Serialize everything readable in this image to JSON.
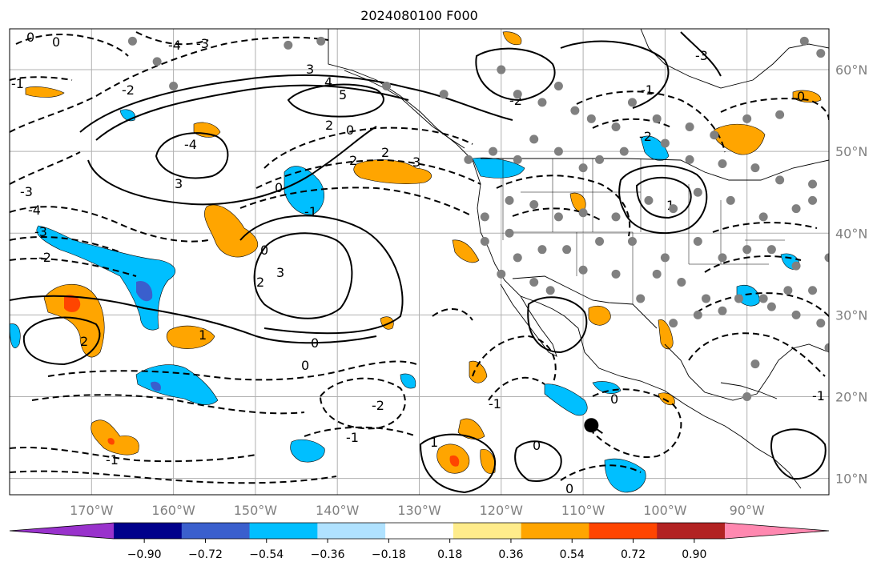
{
  "title": "2024080100 F000",
  "map": {
    "projection": "PlateCarree",
    "lon_range": [
      -180,
      -80
    ],
    "lat_range": [
      8,
      65
    ],
    "lon_ticks": [
      {
        "value": -170,
        "label": "170°W"
      },
      {
        "value": -160,
        "label": "160°W"
      },
      {
        "value": -150,
        "label": "150°W"
      },
      {
        "value": -140,
        "label": "140°W"
      },
      {
        "value": -130,
        "label": "130°W"
      },
      {
        "value": -120,
        "label": "120°W"
      },
      {
        "value": -110,
        "label": "110°W"
      },
      {
        "value": -100,
        "label": "100°W"
      },
      {
        "value": -90,
        "label": "90°W"
      }
    ],
    "lat_ticks": [
      {
        "value": 10,
        "label": "10°N"
      },
      {
        "value": 20,
        "label": "20°N"
      },
      {
        "value": 30,
        "label": "30°N"
      },
      {
        "value": 40,
        "label": "40°N"
      },
      {
        "value": 50,
        "label": "50°N"
      },
      {
        "value": 60,
        "label": "60°N"
      }
    ],
    "grid": true,
    "colors": {
      "grid": "#b0b0b0",
      "tick_label": "#808080",
      "coast": "#000000",
      "station": "#808080",
      "marker": "#000000"
    }
  },
  "colorbar": {
    "orientation": "horizontal",
    "extend": "both",
    "levels": [
      -0.9,
      -0.72,
      -0.54,
      -0.36,
      -0.18,
      0.18,
      0.36,
      0.54,
      0.72,
      0.9
    ],
    "tick_labels": [
      "−0.90",
      "−0.72",
      "−0.54",
      "−0.36",
      "−0.18",
      "0.18",
      "0.36",
      "0.54",
      "0.72",
      "0.90"
    ],
    "colors": [
      "#9932cc",
      "#00008b",
      "#3a5fcd",
      "#00bfff",
      "#b0e2ff",
      "#ffffff",
      "#ffec8b",
      "#ffa500",
      "#ff4500",
      "#b22222",
      "#ff88b0"
    ]
  },
  "contour_labels": {
    "values": [
      "0",
      "-1",
      "-2",
      "-3",
      "-4",
      "1",
      "2",
      "3",
      "4",
      "5"
    ]
  },
  "marker": {
    "lon": -109,
    "lat": 16.5
  }
}
